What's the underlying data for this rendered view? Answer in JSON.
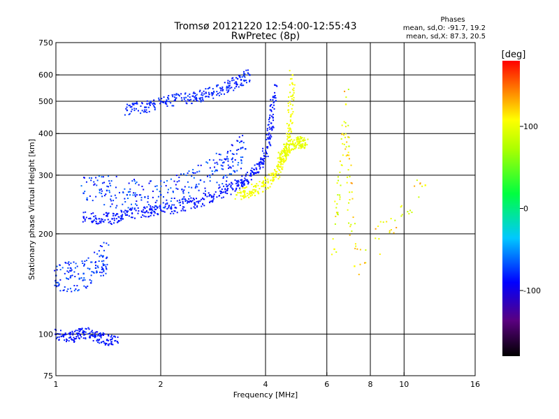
{
  "header": {
    "title_line1": "Tromsø 20121220 12:54:00-12:55:43",
    "title_line2": "RwPretec (8p)",
    "phases_label": "Phases",
    "phases_o": "mean, sd,O: -91.7, 19.2",
    "phases_x": "mean, sd,X:  87.3, 20.5"
  },
  "colorbar": {
    "unit": "[deg]",
    "range": [
      -180,
      180
    ],
    "ticks": [
      {
        "value": 100,
        "label": "100"
      },
      {
        "value": 0,
        "label": "0"
      },
      {
        "value": -100,
        "label": "-100"
      }
    ]
  },
  "chart_data": {
    "type": "scatter",
    "title": "Tromsø 20121220 12:54:00-12:55:43",
    "subtitle": "RwPretec (8p)",
    "xlabel": "Frequency [MHz]",
    "ylabel": "Stationary phase Virtual Height [km]",
    "x_scale": "log",
    "y_scale": "log",
    "xlim": [
      1,
      16
    ],
    "ylim": [
      75,
      750
    ],
    "x_ticks": [
      {
        "value": 1,
        "label": "1"
      },
      {
        "value": 2,
        "label": "2"
      },
      {
        "value": 4,
        "label": "4"
      },
      {
        "value": 6,
        "label": "6"
      },
      {
        "value": 8,
        "label": "8"
      },
      {
        "value": 10,
        "label": "10"
      },
      {
        "value": 16,
        "label": "16"
      }
    ],
    "x_grid": [
      2,
      4,
      6,
      8,
      10
    ],
    "y_ticks": [
      {
        "value": 75,
        "label": "75"
      },
      {
        "value": 100,
        "label": "100"
      },
      {
        "value": 200,
        "label": "200"
      },
      {
        "value": 300,
        "label": "300"
      },
      {
        "value": 400,
        "label": "400"
      },
      {
        "value": 500,
        "label": "500"
      },
      {
        "value": 600,
        "label": "600"
      },
      {
        "value": 750,
        "label": "750"
      }
    ],
    "y_grid": [
      100,
      200,
      300,
      400,
      500,
      600
    ],
    "grid": true,
    "color_by": "phase [deg]",
    "series": [
      {
        "trace": "F-layer O-mode lower trace",
        "phase": -95,
        "spread": 6,
        "x": [
          1.2,
          1.3,
          1.45,
          1.6,
          1.8,
          2.0,
          2.2,
          2.5,
          2.8,
          3.1,
          3.4,
          3.7,
          3.9,
          4.05,
          4.15,
          4.25
        ],
        "y": [
          225,
          223,
          222,
          228,
          232,
          236,
          240,
          248,
          258,
          270,
          285,
          302,
          325,
          365,
          430,
          560
        ]
      },
      {
        "trace": "F-layer O-mode upper diffuse",
        "phase": -85,
        "spread": 20,
        "x": [
          1.2,
          1.4,
          1.6,
          1.8,
          2.0,
          2.3,
          2.6,
          2.9,
          3.2,
          3.5
        ],
        "y": [
          265,
          270,
          262,
          258,
          262,
          272,
          290,
          310,
          335,
          360
        ]
      },
      {
        "trace": "F-layer X-mode trace",
        "phase": 95,
        "spread": 6,
        "x": [
          3.3,
          3.6,
          3.9,
          4.2,
          4.4,
          4.55,
          4.65,
          4.72,
          4.78
        ],
        "y": [
          262,
          268,
          278,
          295,
          318,
          345,
          380,
          450,
          600
        ]
      },
      {
        "trace": "F-layer X-mode diffuse",
        "phase": 90,
        "spread": 10,
        "x": [
          4.4,
          4.6,
          4.8,
          5.0,
          5.2
        ],
        "y": [
          335,
          360,
          372,
          378,
          375
        ]
      },
      {
        "trace": "Multiple-hop echo band",
        "phase": -90,
        "spread": 8,
        "x": [
          1.6,
          1.8,
          2.0,
          2.2,
          2.5,
          2.8,
          3.1,
          3.4,
          3.6
        ],
        "y": [
          470,
          480,
          500,
          505,
          515,
          530,
          550,
          580,
          600
        ]
      },
      {
        "trace": "Low-frequency lower echoes",
        "phase": -85,
        "spread": 15,
        "x": [
          1.0,
          1.1,
          1.2,
          1.3,
          1.4
        ],
        "y": [
          150,
          148,
          152,
          158,
          170
        ]
      },
      {
        "trace": "E-region echoes",
        "phase": -95,
        "spread": 10,
        "x": [
          1.0,
          1.1,
          1.2,
          1.3,
          1.4,
          1.5
        ],
        "y": [
          100,
          98,
          101,
          99,
          96,
          95
        ]
      },
      {
        "trace": "Sporadic points",
        "phase": 100,
        "spread": 35,
        "x": [
          6.3,
          6.8,
          7.2,
          11.5
        ],
        "y": [
          180,
          490,
          160,
          280
        ]
      }
    ]
  }
}
